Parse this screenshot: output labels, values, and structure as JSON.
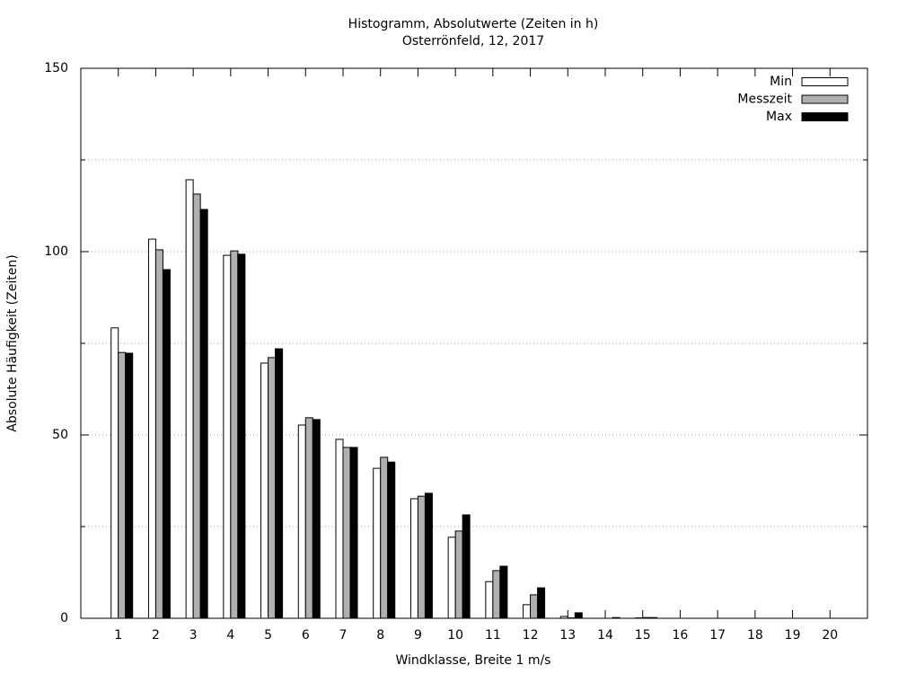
{
  "chart_data": {
    "type": "bar",
    "title": "Histogramm, Absolutwerte (Zeiten in h)",
    "subtitle": "Osterrönfeld, 12, 2017",
    "x_label": "Windklasse, Breite 1 m/s",
    "y_label": "Absolute Häufigkeit (Zeiten)",
    "x": [
      1,
      2,
      3,
      4,
      5,
      6,
      7,
      8,
      9,
      10,
      11,
      12,
      13,
      14,
      15,
      16,
      17,
      18,
      19,
      20
    ],
    "xlim": [
      0,
      21
    ],
    "xticks": [
      1,
      2,
      3,
      4,
      5,
      6,
      7,
      8,
      9,
      10,
      11,
      12,
      13,
      14,
      15,
      16,
      17,
      18,
      19,
      20
    ],
    "ylim": [
      0,
      150
    ],
    "yticks": [
      0,
      50,
      100,
      150
    ],
    "y_minor_ticks": [
      25,
      75,
      125
    ],
    "grid": true,
    "legend": "top-right",
    "series": [
      {
        "name": "Min",
        "color": "#ffffff",
        "values": [
          79.2,
          103.4,
          119.6,
          99.0,
          69.6,
          52.7,
          48.8,
          40.9,
          32.6,
          22.1,
          10.0,
          3.7,
          0.5,
          0,
          0.1,
          0,
          0,
          0,
          0,
          0
        ]
      },
      {
        "name": "Messzeit",
        "color": "#b0b0b0",
        "values": [
          72.5,
          100.5,
          115.7,
          100.2,
          71.1,
          54.7,
          46.6,
          43.9,
          33.3,
          23.8,
          13.0,
          6.4,
          0.1,
          0,
          0.2,
          0,
          0,
          0,
          0,
          0
        ]
      },
      {
        "name": "Max",
        "color": "#000000",
        "values": [
          72.3,
          95.1,
          111.5,
          99.3,
          73.5,
          54.2,
          46.6,
          42.6,
          34.1,
          28.2,
          14.2,
          8.3,
          1.5,
          0.2,
          0.2,
          0,
          0,
          0,
          0,
          0
        ]
      }
    ]
  }
}
